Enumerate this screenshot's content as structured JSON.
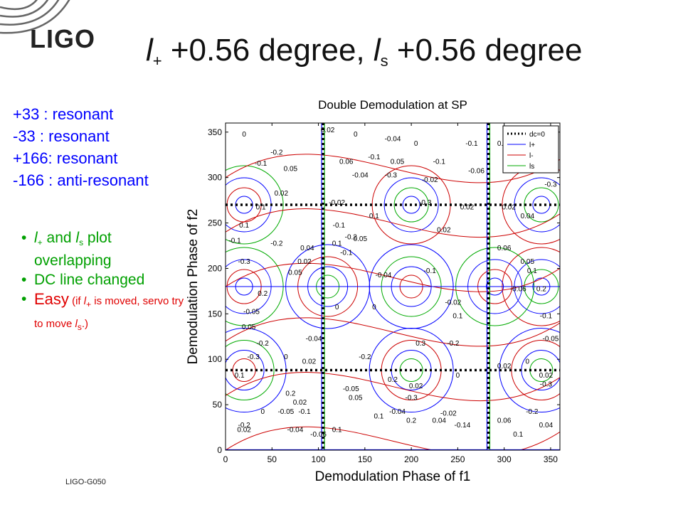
{
  "footer": "LIGO-G050",
  "logo": {
    "text": "LIGO"
  },
  "title": {
    "part1_var": "l",
    "part1_sub": "+",
    "part1_rest": " +0.56 degree, ",
    "part2_var": "l",
    "part2_sub": "s",
    "part2_rest": " +0.56 degree"
  },
  "resonance": [
    "+33  : resonant",
    "-33   : resonant",
    "+166: resonant",
    "-166 : anti-resonant"
  ],
  "bullets": {
    "b1_var1": "l",
    "b1_sub1": "+",
    "b1_and": " and ",
    "b1_var2": "l",
    "b1_sub2": "s",
    "b1_rest": " plot overlapping",
    "b2": "DC line changed",
    "b3_big": "Easy",
    "b3_p1": " (if ",
    "b3_var1": "l",
    "b3_sub1": "+",
    "b3_p2": " is moved, servo try to move ",
    "b3_var2": "l",
    "b3_sub2": "s",
    "b3_p3": ".)"
  },
  "colors": {
    "accent_blue": "#0000ff",
    "green": "#00a000",
    "red": "#e00000"
  },
  "chart_data": {
    "type": "contour",
    "title": "Double Demodulation at SP",
    "xlabel": "Demodulation Phase of f1",
    "ylabel": "Demodulation Phase of f2",
    "xlim": [
      0,
      360
    ],
    "ylim": [
      0,
      360
    ],
    "xticks": [
      0,
      50,
      100,
      150,
      200,
      250,
      300,
      350
    ],
    "yticks": [
      0,
      50,
      100,
      150,
      200,
      250,
      300,
      350
    ],
    "legend_placement": "top-right",
    "series": [
      {
        "name": "dc=0",
        "color": "#000000",
        "style": "dotted"
      },
      {
        "name": "l+",
        "color": "#0000ff",
        "style": "solid"
      },
      {
        "name": "l-",
        "color": "#cc0000",
        "style": "solid"
      },
      {
        "name": "ls",
        "color": "#00aa00",
        "style": "solid"
      }
    ],
    "dc_zero_lines": {
      "vertical_x": [
        105,
        283
      ],
      "horizontal_y": [
        88,
        270
      ]
    },
    "contour_labels": [
      {
        "x": 20,
        "y": 345,
        "t": "0"
      },
      {
        "x": 38,
        "y": 265,
        "t": "0.1"
      },
      {
        "x": 38,
        "y": 313,
        "t": "-0.1"
      },
      {
        "x": 55,
        "y": 325,
        "t": "-0.2"
      },
      {
        "x": 70,
        "y": 307,
        "t": "0.05"
      },
      {
        "x": 60,
        "y": 280,
        "t": "0.02"
      },
      {
        "x": 20,
        "y": 245,
        "t": "0.1"
      },
      {
        "x": 10,
        "y": 228,
        "t": "-0.1"
      },
      {
        "x": 20,
        "y": 205,
        "t": "-0.3"
      },
      {
        "x": 40,
        "y": 170,
        "t": "0.2"
      },
      {
        "x": 28,
        "y": 150,
        "t": "-0.05"
      },
      {
        "x": 25,
        "y": 133,
        "t": "0.05"
      },
      {
        "x": 85,
        "y": 205,
        "t": "0.02"
      },
      {
        "x": 88,
        "y": 220,
        "t": "0.04"
      },
      {
        "x": 55,
        "y": 225,
        "t": "-0.2"
      },
      {
        "x": 75,
        "y": 193,
        "t": "0.05"
      },
      {
        "x": 120,
        "y": 225,
        "t": "0.1"
      },
      {
        "x": 122,
        "y": 245,
        "t": "-0.1"
      },
      {
        "x": 95,
        "y": 120,
        "t": "-0.04"
      },
      {
        "x": 120,
        "y": 155,
        "t": "0"
      },
      {
        "x": 140,
        "y": 345,
        "t": "0"
      },
      {
        "x": 130,
        "y": 315,
        "t": "0.06"
      },
      {
        "x": 110,
        "y": 350,
        "t": "0.02"
      },
      {
        "x": 160,
        "y": 320,
        "t": "-0.1"
      },
      {
        "x": 180,
        "y": 340,
        "t": "-0.04"
      },
      {
        "x": 185,
        "y": 315,
        "t": "0.05"
      },
      {
        "x": 178,
        "y": 300,
        "t": "-0.3"
      },
      {
        "x": 145,
        "y": 300,
        "t": "-0.04"
      },
      {
        "x": 120,
        "y": 270,
        "t": "-0.02"
      },
      {
        "x": 160,
        "y": 255,
        "t": "0.1"
      },
      {
        "x": 205,
        "y": 335,
        "t": "0"
      },
      {
        "x": 220,
        "y": 295,
        "t": "-0.02"
      },
      {
        "x": 230,
        "y": 315,
        "t": "-0.1"
      },
      {
        "x": 215,
        "y": 270,
        "t": "-0.3"
      },
      {
        "x": 235,
        "y": 240,
        "t": "0.02"
      },
      {
        "x": 220,
        "y": 195,
        "t": "-0.1"
      },
      {
        "x": 265,
        "y": 335,
        "t": "-0.1"
      },
      {
        "x": 270,
        "y": 305,
        "t": "-0.06"
      },
      {
        "x": 260,
        "y": 265,
        "t": "0.02"
      },
      {
        "x": 300,
        "y": 335,
        "t": "0.06"
      },
      {
        "x": 310,
        "y": 310,
        "t": "0.01"
      },
      {
        "x": 305,
        "y": 265,
        "t": "0.02"
      },
      {
        "x": 325,
        "y": 255,
        "t": "0.04"
      },
      {
        "x": 300,
        "y": 220,
        "t": "0.06"
      },
      {
        "x": 325,
        "y": 205,
        "t": "0.05"
      },
      {
        "x": 330,
        "y": 195,
        "t": "0.1"
      },
      {
        "x": 315,
        "y": 175,
        "t": "-0.06"
      },
      {
        "x": 340,
        "y": 175,
        "t": "0.2"
      },
      {
        "x": 345,
        "y": 145,
        "t": "-0.1"
      },
      {
        "x": 350,
        "y": 120,
        "t": "-0.05"
      },
      {
        "x": 350,
        "y": 290,
        "t": "-0.3"
      },
      {
        "x": 145,
        "y": 230,
        "t": "0.05"
      },
      {
        "x": 135,
        "y": 232,
        "t": "-0.2"
      },
      {
        "x": 130,
        "y": 215,
        "t": "-0.1"
      },
      {
        "x": 170,
        "y": 190,
        "t": "-0.04"
      },
      {
        "x": 160,
        "y": 155,
        "t": "0"
      },
      {
        "x": 180,
        "y": 75,
        "t": "0.2"
      },
      {
        "x": 150,
        "y": 100,
        "t": "-0.2"
      },
      {
        "x": 135,
        "y": 65,
        "t": "-0.05"
      },
      {
        "x": 140,
        "y": 55,
        "t": "0.05"
      },
      {
        "x": 165,
        "y": 35,
        "t": "0.1"
      },
      {
        "x": 185,
        "y": 40,
        "t": "-0.04"
      },
      {
        "x": 200,
        "y": 30,
        "t": "0.2"
      },
      {
        "x": 200,
        "y": 55,
        "t": "-0.3"
      },
      {
        "x": 205,
        "y": 68,
        "t": "0.02"
      },
      {
        "x": 210,
        "y": 115,
        "t": "0.3"
      },
      {
        "x": 245,
        "y": 115,
        "t": "-0.2"
      },
      {
        "x": 250,
        "y": 145,
        "t": "0.1"
      },
      {
        "x": 245,
        "y": 160,
        "t": "-0.02"
      },
      {
        "x": 250,
        "y": 80,
        "t": "0"
      },
      {
        "x": 230,
        "y": 30,
        "t": "0.04"
      },
      {
        "x": 240,
        "y": 38,
        "t": "-0.02"
      },
      {
        "x": 255,
        "y": 25,
        "t": "-0.14"
      },
      {
        "x": 300,
        "y": 30,
        "t": "0.06"
      },
      {
        "x": 300,
        "y": 90,
        "t": "0.02"
      },
      {
        "x": 325,
        "y": 95,
        "t": "0"
      },
      {
        "x": 345,
        "y": 80,
        "t": "0.02"
      },
      {
        "x": 345,
        "y": 70,
        "t": "-0.3"
      },
      {
        "x": 330,
        "y": 40,
        "t": "-0.2"
      },
      {
        "x": 345,
        "y": 25,
        "t": "0.04"
      },
      {
        "x": 315,
        "y": 15,
        "t": "0.1"
      },
      {
        "x": 20,
        "y": 25,
        "t": "-0.2"
      },
      {
        "x": 40,
        "y": 40,
        "t": "0"
      },
      {
        "x": 65,
        "y": 40,
        "t": "-0.05"
      },
      {
        "x": 80,
        "y": 50,
        "t": "0.02"
      },
      {
        "x": 85,
        "y": 40,
        "t": "-0.1"
      },
      {
        "x": 75,
        "y": 20,
        "t": "-0.04"
      },
      {
        "x": 100,
        "y": 15,
        "t": "-0.06"
      },
      {
        "x": 120,
        "y": 20,
        "t": "0.1"
      },
      {
        "x": 15,
        "y": 80,
        "t": "0.1"
      },
      {
        "x": 30,
        "y": 100,
        "t": "-0.3"
      },
      {
        "x": 40,
        "y": 115,
        "t": "-0.2"
      },
      {
        "x": 65,
        "y": 100,
        "t": "0"
      },
      {
        "x": 70,
        "y": 60,
        "t": "0.2"
      },
      {
        "x": 90,
        "y": 95,
        "t": "0.02"
      },
      {
        "x": 20,
        "y": 20,
        "t": "0.02"
      }
    ]
  }
}
